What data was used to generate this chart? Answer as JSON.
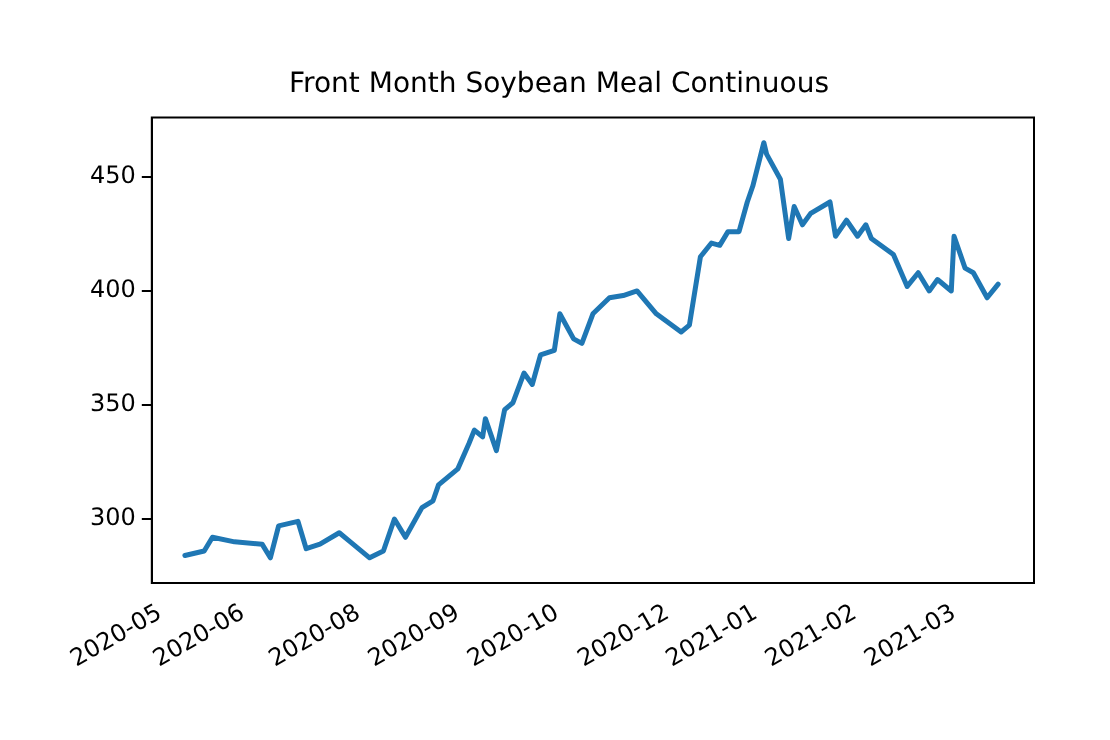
{
  "chart_data": {
    "type": "line",
    "title": "Front Month Soybean Meal Continuous",
    "x": [
      "2020-06-09",
      "2020-06-16",
      "2020-06-19",
      "2020-06-27",
      "2020-07-07",
      "2020-07-10",
      "2020-07-13",
      "2020-07-20",
      "2020-07-23",
      "2020-07-28",
      "2020-08-04",
      "2020-08-08",
      "2020-08-15",
      "2020-08-20",
      "2020-08-24",
      "2020-08-28",
      "2020-09-03",
      "2020-09-07",
      "2020-09-09",
      "2020-09-16",
      "2020-09-20",
      "2020-09-22",
      "2020-09-25",
      "2020-09-26",
      "2020-09-30",
      "2020-10-03",
      "2020-10-06",
      "2020-10-10",
      "2020-10-13",
      "2020-10-16",
      "2020-10-21",
      "2020-10-23",
      "2020-10-28",
      "2020-10-31",
      "2020-11-04",
      "2020-11-10",
      "2020-11-15",
      "2020-11-20",
      "2020-11-27",
      "2020-12-06",
      "2020-12-09",
      "2020-12-13",
      "2020-12-17",
      "2020-12-20",
      "2020-12-23",
      "2020-12-27",
      "2020-12-30",
      "2021-01-01",
      "2021-01-05",
      "2021-01-06",
      "2021-01-11",
      "2021-01-14",
      "2021-01-16",
      "2021-01-19",
      "2021-01-22",
      "2021-01-29",
      "2021-01-31",
      "2021-02-04",
      "2021-02-08",
      "2021-02-11",
      "2021-02-13",
      "2021-02-21",
      "2021-02-26",
      "2021-03-02",
      "2021-03-06",
      "2021-03-09",
      "2021-03-14",
      "2021-03-15",
      "2021-03-19",
      "2021-03-22",
      "2021-03-27",
      "2021-03-31"
    ],
    "series": [
      {
        "color": "#1f77b4",
        "values": [
          284,
          286,
          292,
          290,
          289,
          283,
          297,
          299,
          287,
          289,
          294,
          290,
          283,
          286,
          300,
          292,
          305,
          308,
          315,
          322,
          333,
          339,
          336,
          344,
          330,
          348,
          351,
          364,
          359,
          372,
          374,
          390,
          379,
          377,
          390,
          397,
          398,
          400,
          390,
          382,
          385,
          415,
          421,
          420,
          426,
          426,
          439,
          446,
          465,
          460,
          449,
          423,
          437,
          429,
          434,
          439,
          424,
          431,
          424,
          429,
          423,
          416,
          402,
          408,
          400,
          405,
          400,
          424,
          410,
          408,
          397,
          403
        ]
      }
    ],
    "xlim": [
      "2020-05-28",
      "2021-04-13"
    ],
    "xticks": [
      {
        "value": "2020-05-31",
        "label": "2020-05"
      },
      {
        "value": "2020-06-30",
        "label": "2020-06"
      },
      {
        "value": "2020-08-11",
        "label": "2020-08"
      },
      {
        "value": "2020-09-16",
        "label": "2020-09"
      },
      {
        "value": "2020-10-22",
        "label": "2020-10"
      },
      {
        "value": "2020-12-01",
        "label": "2020-12"
      },
      {
        "value": "2021-01-02",
        "label": "2021-01"
      },
      {
        "value": "2021-02-07",
        "label": "2021-02"
      },
      {
        "value": "2021-03-15",
        "label": "2021-03"
      }
    ],
    "ylim": [
      272,
      476
    ],
    "yticks": [
      300,
      350,
      400,
      450
    ],
    "grid": false,
    "legend": false,
    "marker": "none",
    "line_style": "solid"
  }
}
